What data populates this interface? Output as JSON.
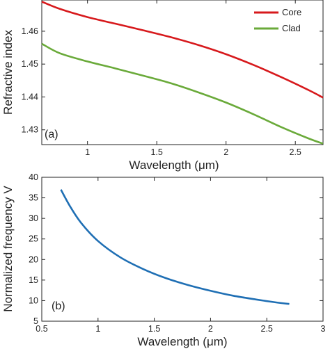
{
  "chart_data": [
    {
      "type": "line",
      "panel_label": "(a)",
      "xlabel": "Wavelength (μm)",
      "ylabel": "Refractive index",
      "xlim": [
        0.67,
        2.7
      ],
      "ylim": [
        1.4255,
        1.4695
      ],
      "xticks": [
        "1",
        "1.5",
        "2",
        "2.5"
      ],
      "yticks": [
        "1.43",
        "1.44",
        "1.45",
        "1.46"
      ],
      "xtick_values": [
        1,
        1.5,
        2,
        2.5
      ],
      "ytick_values": [
        1.43,
        1.44,
        1.45,
        1.46
      ],
      "grid": false,
      "legend_position": "top-right",
      "series": [
        {
          "name": "Core",
          "color": "#d7191c",
          "x": [
            0.67,
            0.8,
            1.0,
            1.2,
            1.4,
            1.6,
            1.8,
            2.0,
            2.2,
            2.4,
            2.6,
            2.7
          ],
          "y": [
            1.469,
            1.4668,
            1.4643,
            1.4623,
            1.4603,
            1.4582,
            1.4558,
            1.453,
            1.4497,
            1.446,
            1.442,
            1.4398
          ]
        },
        {
          "name": "Clad",
          "color": "#6aaa3a",
          "x": [
            0.67,
            0.8,
            1.0,
            1.2,
            1.4,
            1.6,
            1.8,
            2.0,
            2.2,
            2.4,
            2.6,
            2.7
          ],
          "y": [
            1.4562,
            1.4533,
            1.4508,
            1.4487,
            1.4465,
            1.4442,
            1.4414,
            1.4383,
            1.4347,
            1.4308,
            1.4273,
            1.4258
          ]
        }
      ]
    },
    {
      "type": "line",
      "panel_label": "(b)",
      "xlabel": "Wavelength (μm)",
      "ylabel": "Normalized frequency V",
      "xlim": [
        0.5,
        3
      ],
      "ylim": [
        5,
        40
      ],
      "xticks": [
        "0.5",
        "1",
        "1.5",
        "2",
        "2.5",
        "3"
      ],
      "yticks": [
        "5",
        "10",
        "15",
        "20",
        "25",
        "30",
        "35",
        "40"
      ],
      "xtick_values": [
        0.5,
        1,
        1.5,
        2,
        2.5,
        3
      ],
      "ytick_values": [
        5,
        10,
        15,
        20,
        25,
        30,
        35,
        40
      ],
      "grid": false,
      "series": [
        {
          "color": "#1f6fb4",
          "x": [
            0.67,
            0.75,
            0.85,
            1.0,
            1.2,
            1.4,
            1.6,
            1.8,
            2.0,
            2.2,
            2.4,
            2.6,
            2.7
          ],
          "y": [
            37.0,
            33.0,
            28.9,
            24.5,
            20.5,
            17.7,
            15.5,
            13.8,
            12.4,
            11.2,
            10.3,
            9.5,
            9.2
          ]
        }
      ]
    }
  ]
}
